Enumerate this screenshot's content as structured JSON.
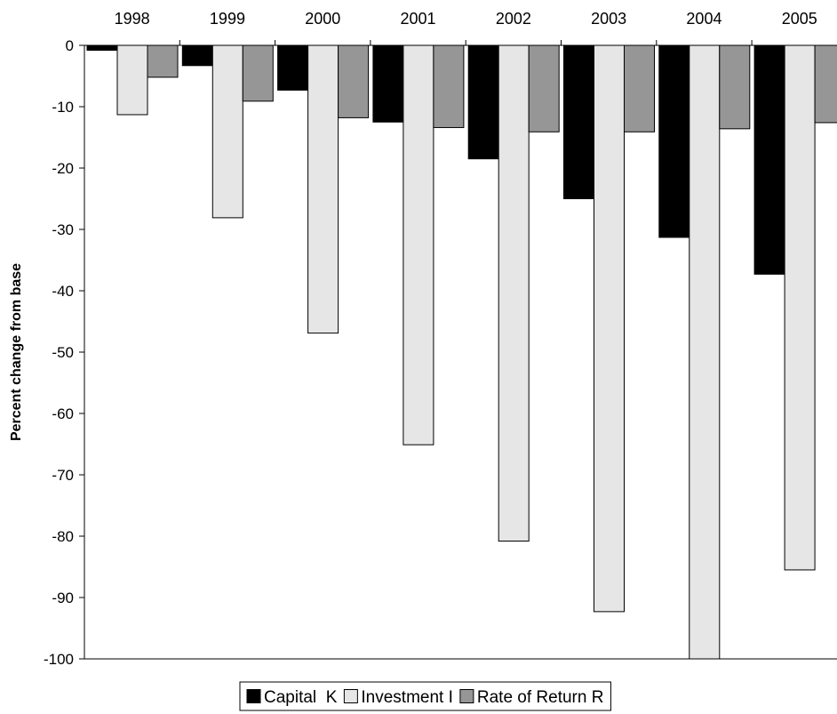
{
  "chart_data": {
    "type": "bar",
    "categories": [
      "1998",
      "1999",
      "2000",
      "2001",
      "2002",
      "2003",
      "2004",
      "2005"
    ],
    "series": [
      {
        "name": "Capital  K",
        "color": "#000000",
        "values": [
          -0.8,
          -3.3,
          -7.3,
          -12.5,
          -18.5,
          -25.0,
          -31.3,
          -37.3
        ]
      },
      {
        "name": "Investment I",
        "color": "#e6e6e6",
        "values": [
          -11.3,
          -28.1,
          -46.9,
          -65.1,
          -80.8,
          -92.3,
          -100.0,
          -85.5
        ]
      },
      {
        "name": "Rate of Return R",
        "color": "#969696",
        "values": [
          -5.2,
          -9.1,
          -11.8,
          -13.4,
          -14.1,
          -14.1,
          -13.6,
          -12.6
        ]
      }
    ],
    "title": "",
    "xlabel": "",
    "ylabel": "Percent change from base",
    "ylim": [
      -100,
      0
    ],
    "yticks": [
      "0",
      "-10",
      "-20",
      "-30",
      "-40",
      "-50",
      "-60",
      "-70",
      "-80",
      "-90",
      "-100"
    ],
    "grid": false,
    "category_axis_position": "top",
    "legend_position": "bottom-center"
  }
}
